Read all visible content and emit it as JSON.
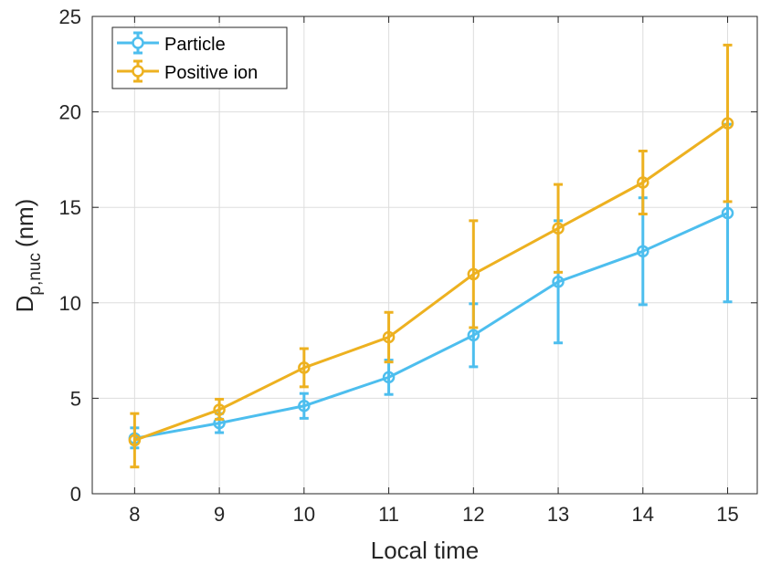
{
  "chart_data": {
    "type": "line",
    "title": "",
    "xlabel": "Local time",
    "ylabel_main": "D",
    "ylabel_sub": "p,nuc",
    "ylabel_unit": "(nm)",
    "xlim": [
      7.5,
      15.35
    ],
    "ylim": [
      0,
      25
    ],
    "xticks": [
      8,
      9,
      10,
      11,
      12,
      13,
      14,
      15
    ],
    "yticks": [
      0,
      5,
      10,
      15,
      20,
      25
    ],
    "x": [
      8,
      9,
      10,
      11,
      12,
      13,
      14,
      15
    ],
    "grid": true,
    "legend_position": "top-left",
    "series": [
      {
        "name": "Particle",
        "color": "#4DBEEE",
        "values": [
          2.9,
          3.7,
          4.6,
          6.1,
          8.3,
          11.1,
          12.7,
          14.7
        ],
        "err_low": [
          2.4,
          3.2,
          3.95,
          5.2,
          6.65,
          7.9,
          9.9,
          10.05
        ],
        "err_high": [
          3.45,
          4.2,
          5.25,
          7.0,
          9.95,
          14.3,
          15.5,
          19.35
        ]
      },
      {
        "name": "Positive ion",
        "color": "#EDB120",
        "values": [
          2.8,
          4.4,
          6.6,
          8.2,
          11.5,
          13.9,
          16.3,
          19.4
        ],
        "err_low": [
          1.4,
          3.9,
          5.6,
          6.9,
          8.7,
          11.6,
          14.65,
          15.3
        ],
        "err_high": [
          4.2,
          4.95,
          7.6,
          9.5,
          14.3,
          16.2,
          17.95,
          23.5
        ]
      }
    ]
  }
}
